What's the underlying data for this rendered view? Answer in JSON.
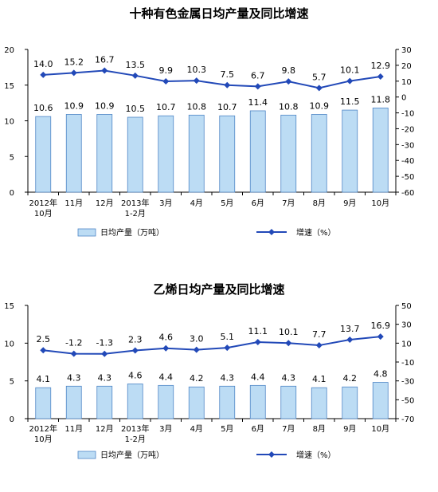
{
  "chart_data": [
    {
      "type": "bar",
      "title": "十种有色金属日均产量及同比增速",
      "categories": [
        {
          "line1": "2012年",
          "line2": "10月"
        },
        {
          "line1": "11月",
          "line2": ""
        },
        {
          "line1": "12月",
          "line2": ""
        },
        {
          "line1": "2013年",
          "line2": "1-2月"
        },
        {
          "line1": "3月",
          "line2": ""
        },
        {
          "line1": "4月",
          "line2": ""
        },
        {
          "line1": "5月",
          "line2": ""
        },
        {
          "line1": "6月",
          "line2": ""
        },
        {
          "line1": "7月",
          "line2": ""
        },
        {
          "line1": "8月",
          "line2": ""
        },
        {
          "line1": "9月",
          "line2": ""
        },
        {
          "line1": "10月",
          "line2": ""
        }
      ],
      "series": [
        {
          "name": "日均产量（万吨）",
          "type": "bar",
          "axis": "left",
          "values": [
            10.6,
            10.9,
            10.9,
            10.5,
            10.7,
            10.8,
            10.7,
            11.4,
            10.8,
            10.9,
            11.5,
            11.8
          ],
          "labels": [
            "10.6",
            "10.9",
            "10.9",
            "10.5",
            "10.7",
            "10.8",
            "10.7",
            "11.4",
            "10.8",
            "10.9",
            "11.5",
            "11.8"
          ]
        },
        {
          "name": "增速（%）",
          "type": "line",
          "axis": "right",
          "values": [
            14.0,
            15.2,
            16.7,
            13.5,
            9.9,
            10.3,
            7.5,
            6.7,
            9.8,
            5.7,
            10.1,
            12.9
          ],
          "labels": [
            "14.0",
            "15.2",
            "16.7",
            "13.5",
            "9.9",
            "10.3",
            "7.5",
            "6.7",
            "9.8",
            "5.7",
            "10.1",
            "12.9"
          ]
        }
      ],
      "left_axis": {
        "min": 0,
        "max": 20,
        "ticks": [
          "0",
          "5",
          "10",
          "15",
          "20"
        ]
      },
      "right_axis": {
        "min": -60,
        "max": 30,
        "ticks": [
          "-60",
          "-50",
          "-40",
          "-30",
          "-20",
          "-10",
          "0",
          "10",
          "20",
          "30"
        ]
      },
      "grid": false,
      "legend": "bottom",
      "colors": {
        "bar_fill": "#bcdcf4",
        "bar_stroke": "#4f86c6",
        "line": "#2249b8"
      }
    },
    {
      "type": "bar",
      "title": "乙烯日均产量及同比增速",
      "categories": [
        {
          "line1": "2012年",
          "line2": "10月"
        },
        {
          "line1": "11月",
          "line2": ""
        },
        {
          "line1": "12月",
          "line2": ""
        },
        {
          "line1": "2013年",
          "line2": "1-2月"
        },
        {
          "line1": "3月",
          "line2": ""
        },
        {
          "line1": "4月",
          "line2": ""
        },
        {
          "line1": "5月",
          "line2": ""
        },
        {
          "line1": "6月",
          "line2": ""
        },
        {
          "line1": "7月",
          "line2": ""
        },
        {
          "line1": "8月",
          "line2": ""
        },
        {
          "line1": "9月",
          "line2": ""
        },
        {
          "line1": "10月",
          "line2": ""
        }
      ],
      "series": [
        {
          "name": "日均产量（万吨）",
          "type": "bar",
          "axis": "left",
          "values": [
            4.1,
            4.3,
            4.3,
            4.6,
            4.4,
            4.2,
            4.3,
            4.4,
            4.3,
            4.1,
            4.2,
            4.8
          ],
          "labels": [
            "4.1",
            "4.3",
            "4.3",
            "4.6",
            "4.4",
            "4.2",
            "4.3",
            "4.4",
            "4.3",
            "4.1",
            "4.2",
            "4.8"
          ]
        },
        {
          "name": "增速（%）",
          "type": "line",
          "axis": "right",
          "values": [
            2.5,
            -1.2,
            -1.3,
            2.3,
            4.6,
            3.0,
            5.1,
            11.1,
            10.1,
            7.7,
            13.7,
            16.9
          ],
          "labels": [
            "2.5",
            "-1.2",
            "-1.3",
            "2.3",
            "4.6",
            "3.0",
            "5.1",
            "11.1",
            "10.1",
            "7.7",
            "13.7",
            "16.9"
          ]
        }
      ],
      "left_axis": {
        "min": 0,
        "max": 15,
        "ticks": [
          "0",
          "5",
          "10",
          "15"
        ]
      },
      "right_axis": {
        "min": -70,
        "max": 50,
        "ticks": [
          "-70",
          "-50",
          "-30",
          "-10",
          "10",
          "30",
          "50"
        ]
      },
      "grid": false,
      "legend": "bottom",
      "colors": {
        "bar_fill": "#bcdcf4",
        "bar_stroke": "#4f86c6",
        "line": "#2249b8"
      }
    }
  ]
}
